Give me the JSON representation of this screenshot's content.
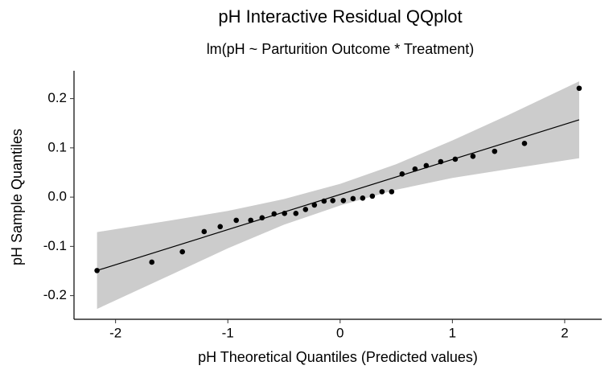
{
  "chart_data": {
    "type": "qqplot",
    "title": "pH Interactive Residual QQplot",
    "subtitle": "lm(pH ~ Parturition Outcome * Treatment)",
    "x_label": "pH Theoretical Quantiles (Predicted values)",
    "y_label": "pH Sample Quantiles",
    "x": [
      -2.165,
      -1.677,
      -1.405,
      -1.211,
      -1.068,
      -0.925,
      -0.796,
      -0.695,
      -0.588,
      -0.495,
      -0.394,
      -0.308,
      -0.229,
      -0.143,
      -0.065,
      0.029,
      0.115,
      0.201,
      0.287,
      0.373,
      0.459,
      0.552,
      0.667,
      0.767,
      0.896,
      1.025,
      1.183,
      1.376,
      1.642,
      2.129
    ],
    "y": [
      -0.149,
      -0.132,
      -0.111,
      -0.07,
      -0.06,
      -0.047,
      -0.047,
      -0.042,
      -0.034,
      -0.033,
      -0.033,
      -0.025,
      -0.016,
      -0.008,
      -0.007,
      -0.007,
      -0.003,
      -0.002,
      0.002,
      0.011,
      0.011,
      0.047,
      0.057,
      0.064,
      0.072,
      0.077,
      0.083,
      0.093,
      0.109,
      0.221
    ],
    "color": "#000000",
    "line": {
      "x": [
        -2.165,
        2.129
      ],
      "y": [
        -0.149,
        0.157
      ]
    },
    "band": {
      "x": [
        -2.165,
        -1.5,
        -1,
        -0.5,
        0,
        0.5,
        1,
        1.5,
        2.129
      ],
      "upper": [
        -0.071,
        -0.047,
        -0.028,
        -0.004,
        0.027,
        0.067,
        0.115,
        0.167,
        0.235
      ],
      "lower": [
        -0.227,
        -0.157,
        -0.104,
        -0.056,
        -0.017,
        0.015,
        0.039,
        0.057,
        0.079
      ],
      "color": "#cccccc"
    },
    "xlim": [
      -2.37,
      2.33
    ],
    "ylim": [
      -0.248,
      0.2565
    ],
    "xticks": [
      -2,
      -1,
      0,
      1,
      2
    ],
    "yticks": [
      -0.2,
      -0.1,
      {
        "value": 0,
        "label": "0.0"
      },
      0.1,
      0.2
    ]
  }
}
